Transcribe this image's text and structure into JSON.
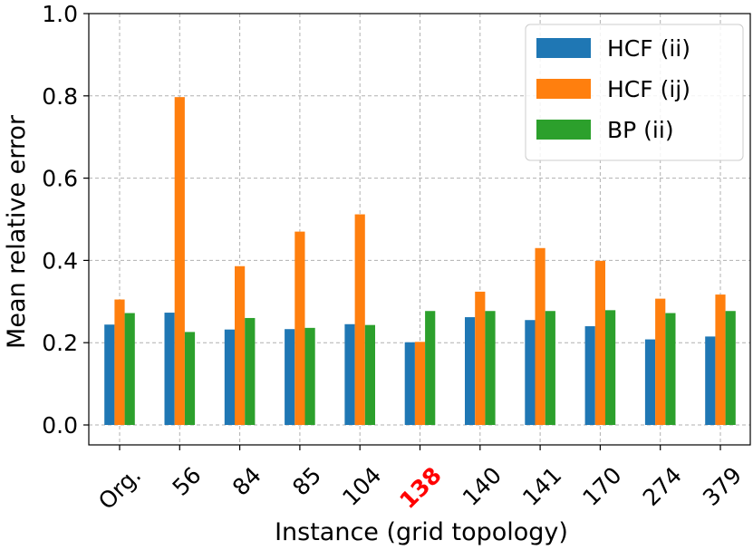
{
  "chart_data": {
    "type": "bar",
    "xlabel": "Instance (grid topology)",
    "ylabel": "Mean relative error",
    "ylim": [
      0.0,
      1.0
    ],
    "yticks": [
      "0.0",
      "0.2",
      "0.4",
      "0.6",
      "0.8",
      "1.0"
    ],
    "grid": true,
    "legend_position": "top-right",
    "categories": [
      "Org.",
      "56",
      "84",
      "85",
      "104",
      "138",
      "140",
      "141",
      "170",
      "274",
      "379"
    ],
    "highlight": {
      "category": "138",
      "color": "#ff0000"
    },
    "series": [
      {
        "name": "HCF (ii)",
        "color": "#1f77b4",
        "values": [
          0.244,
          0.273,
          0.232,
          0.233,
          0.245,
          0.201,
          0.262,
          0.255,
          0.24,
          0.208,
          0.215
        ]
      },
      {
        "name": "HCF (ij)",
        "color": "#ff7f0e",
        "values": [
          0.305,
          0.797,
          0.386,
          0.47,
          0.512,
          0.202,
          0.324,
          0.43,
          0.399,
          0.307,
          0.317
        ]
      },
      {
        "name": "BP (ii)",
        "color": "#2ca02c",
        "values": [
          0.272,
          0.226,
          0.26,
          0.236,
          0.243,
          0.277,
          0.277,
          0.277,
          0.279,
          0.272,
          0.277
        ]
      }
    ]
  }
}
